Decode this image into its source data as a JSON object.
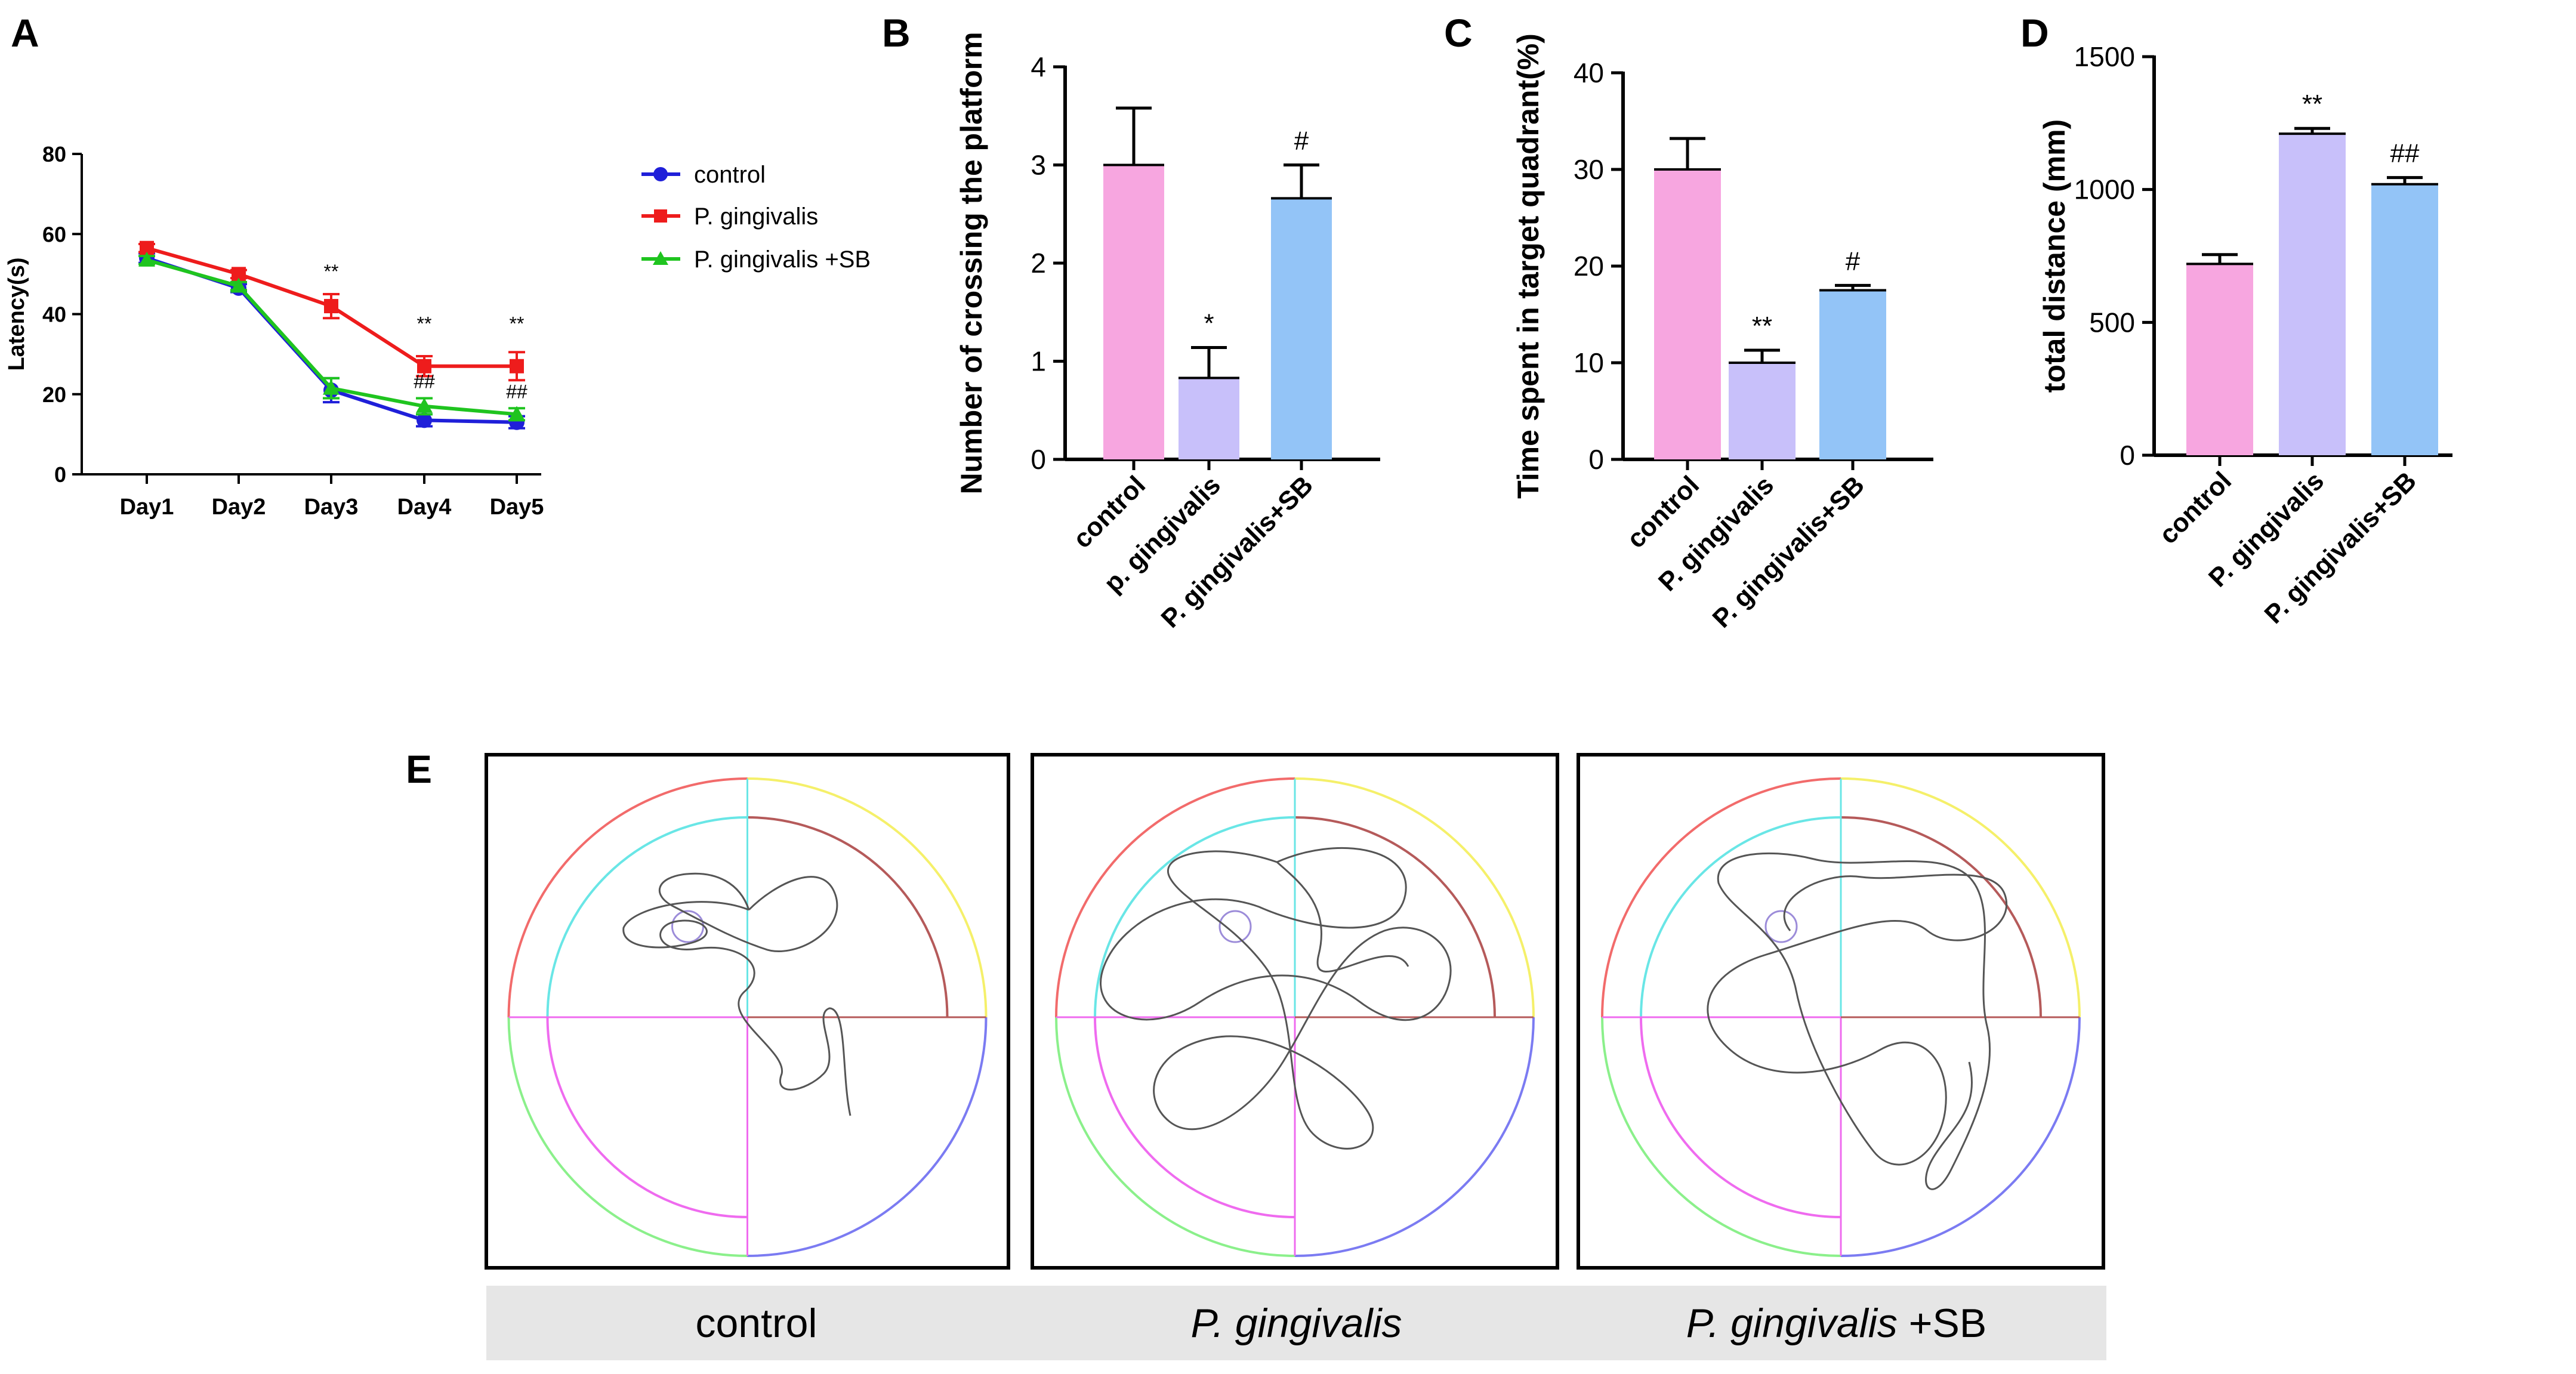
{
  "panel_letters": {
    "a": "A",
    "b": "B",
    "c": "C",
    "d": "D",
    "e": "E"
  },
  "chart_data": [
    {
      "id": "A",
      "type": "line",
      "title": "",
      "xlabel": "",
      "ylabel": "Latency(s)",
      "ylim": [
        0,
        80
      ],
      "yticks": [
        0,
        20,
        40,
        60,
        80
      ],
      "categories": [
        "Day1",
        "Day2",
        "Day3",
        "Day4",
        "Day5"
      ],
      "series": [
        {
          "name": "control",
          "color": "#1f1fd9",
          "marker": "circle",
          "values": [
            54,
            46.5,
            21,
            13.5,
            13
          ],
          "errors": [
            1.2,
            1.0,
            3.0,
            1.5,
            1.5
          ]
        },
        {
          "name": "P. gingivalis",
          "color": "#ee1c1c",
          "marker": "square",
          "values": [
            56.5,
            50,
            42,
            27,
            27
          ],
          "errors": [
            1.0,
            1.0,
            3.0,
            2.5,
            3.5
          ]
        },
        {
          "name": "P. gingivalis +SB",
          "color": "#1fc41f",
          "marker": "triangle",
          "values": [
            53.5,
            47,
            21.5,
            17,
            15
          ],
          "errors": [
            1.0,
            1.0,
            2.5,
            2.0,
            1.5
          ]
        }
      ],
      "annotations": [
        {
          "category": "Day3",
          "text": "**",
          "y": 49
        },
        {
          "category": "Day4",
          "text": "**",
          "y": 36
        },
        {
          "category": "Day5",
          "text": "**",
          "y": 36
        },
        {
          "category": "Day4",
          "text": "##",
          "y": 21.5
        },
        {
          "category": "Day5",
          "text": "##",
          "y": 19
        }
      ],
      "legend": "right"
    },
    {
      "id": "B",
      "type": "bar",
      "title": "",
      "ylabel": "Number of crossing the platform",
      "ylim": [
        0,
        4
      ],
      "yticks": [
        0,
        1,
        2,
        3,
        4
      ],
      "categories": [
        "control",
        "p. gingivalis",
        "P. gingivalis+SB"
      ],
      "values": [
        3.0,
        0.83,
        2.66
      ],
      "errors": [
        0.58,
        0.31,
        0.34
      ],
      "colors": [
        "#f7a6e0",
        "#c8c0fa",
        "#93c4f7"
      ],
      "annotations": [
        "",
        "*",
        "#"
      ]
    },
    {
      "id": "C",
      "type": "bar",
      "title": "",
      "ylabel": "Time spent in target quadrant(%)",
      "ylim": [
        0,
        40
      ],
      "yticks": [
        0,
        10,
        20,
        30,
        40
      ],
      "categories": [
        "control",
        "P. gingivalis",
        "P. gingivalis+SB"
      ],
      "values": [
        30,
        10,
        17.5
      ],
      "errors": [
        3.2,
        1.3,
        0.5
      ],
      "colors": [
        "#f7a6e0",
        "#c8c0fa",
        "#93c4f7"
      ],
      "annotations": [
        "",
        "**",
        "#"
      ]
    },
    {
      "id": "D",
      "type": "bar",
      "title": "",
      "ylabel": "total distance (mm)",
      "ylim": [
        0,
        1500
      ],
      "yticks": [
        0,
        500,
        1000,
        1500
      ],
      "categories": [
        "control",
        "P. gingivalis",
        "P. gingivalis+SB"
      ],
      "values": [
        720,
        1210,
        1020
      ],
      "errors": [
        35,
        20,
        25
      ],
      "colors": [
        "#f7a6e0",
        "#c8c0fa",
        "#93c4f7"
      ],
      "annotations": [
        "",
        "**",
        "##"
      ]
    }
  ],
  "tracks": {
    "labels": [
      {
        "italic": "",
        "plain": "control"
      },
      {
        "italic": "P. gingivalis",
        "plain": ""
      },
      {
        "italic": "P. gingivalis",
        "plain": " +SB"
      }
    ],
    "quadrant_colors": [
      "#f26b6b",
      "#f5f06a",
      "#8bf08b",
      "#7b7bf2"
    ],
    "inner_colors": [
      "#69e6e6",
      "#b55a5a",
      "#ef6bef",
      "#ef6bef"
    ],
    "platform_color": "#9c8cd9",
    "path_color": "#555555"
  }
}
